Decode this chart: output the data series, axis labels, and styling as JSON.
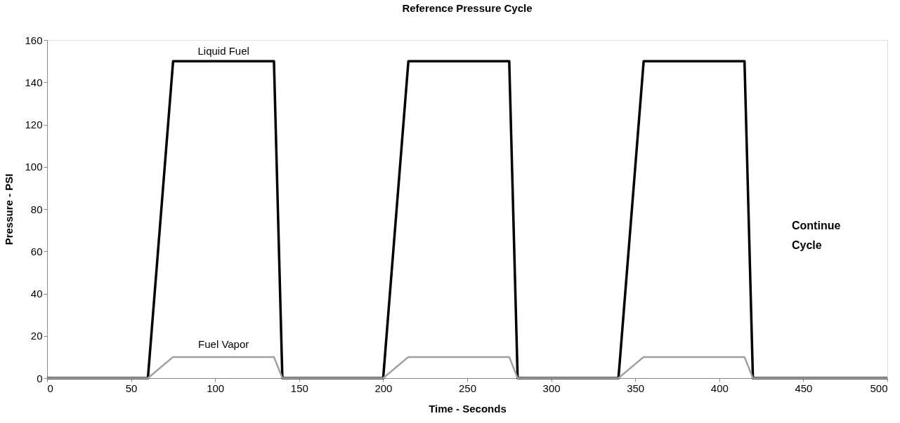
{
  "chart_data": {
    "type": "line",
    "title": "Reference Pressure Cycle",
    "xlabel": "Time - Seconds",
    "ylabel": "Pressure - PSI",
    "xlim": [
      0,
      500
    ],
    "xticks": [
      0,
      50,
      100,
      150,
      200,
      250,
      300,
      350,
      400,
      450,
      500
    ],
    "ylim": [
      0,
      160
    ],
    "yticks": [
      0,
      20,
      40,
      60,
      80,
      100,
      120,
      140,
      160
    ],
    "series": [
      {
        "name": "Liquid Fuel",
        "color": "#000000",
        "x": [
          0,
          60,
          75,
          135,
          140,
          200,
          215,
          275,
          280,
          340,
          355,
          415,
          420,
          500
        ],
        "values": [
          0,
          0,
          150,
          150,
          0,
          0,
          150,
          150,
          0,
          0,
          150,
          150,
          0,
          0
        ]
      },
      {
        "name": "Fuel Vapor",
        "color": "#a0a0a0",
        "x": [
          0,
          60,
          75,
          135,
          140,
          200,
          215,
          275,
          280,
          340,
          355,
          415,
          420,
          500
        ],
        "values": [
          0,
          0,
          10,
          10,
          0,
          0,
          10,
          10,
          0,
          0,
          10,
          10,
          0,
          0
        ]
      }
    ],
    "annotations": [
      "Continue Cycle"
    ],
    "grid": false,
    "legend": false,
    "marker": "none",
    "line_style": "solid"
  }
}
